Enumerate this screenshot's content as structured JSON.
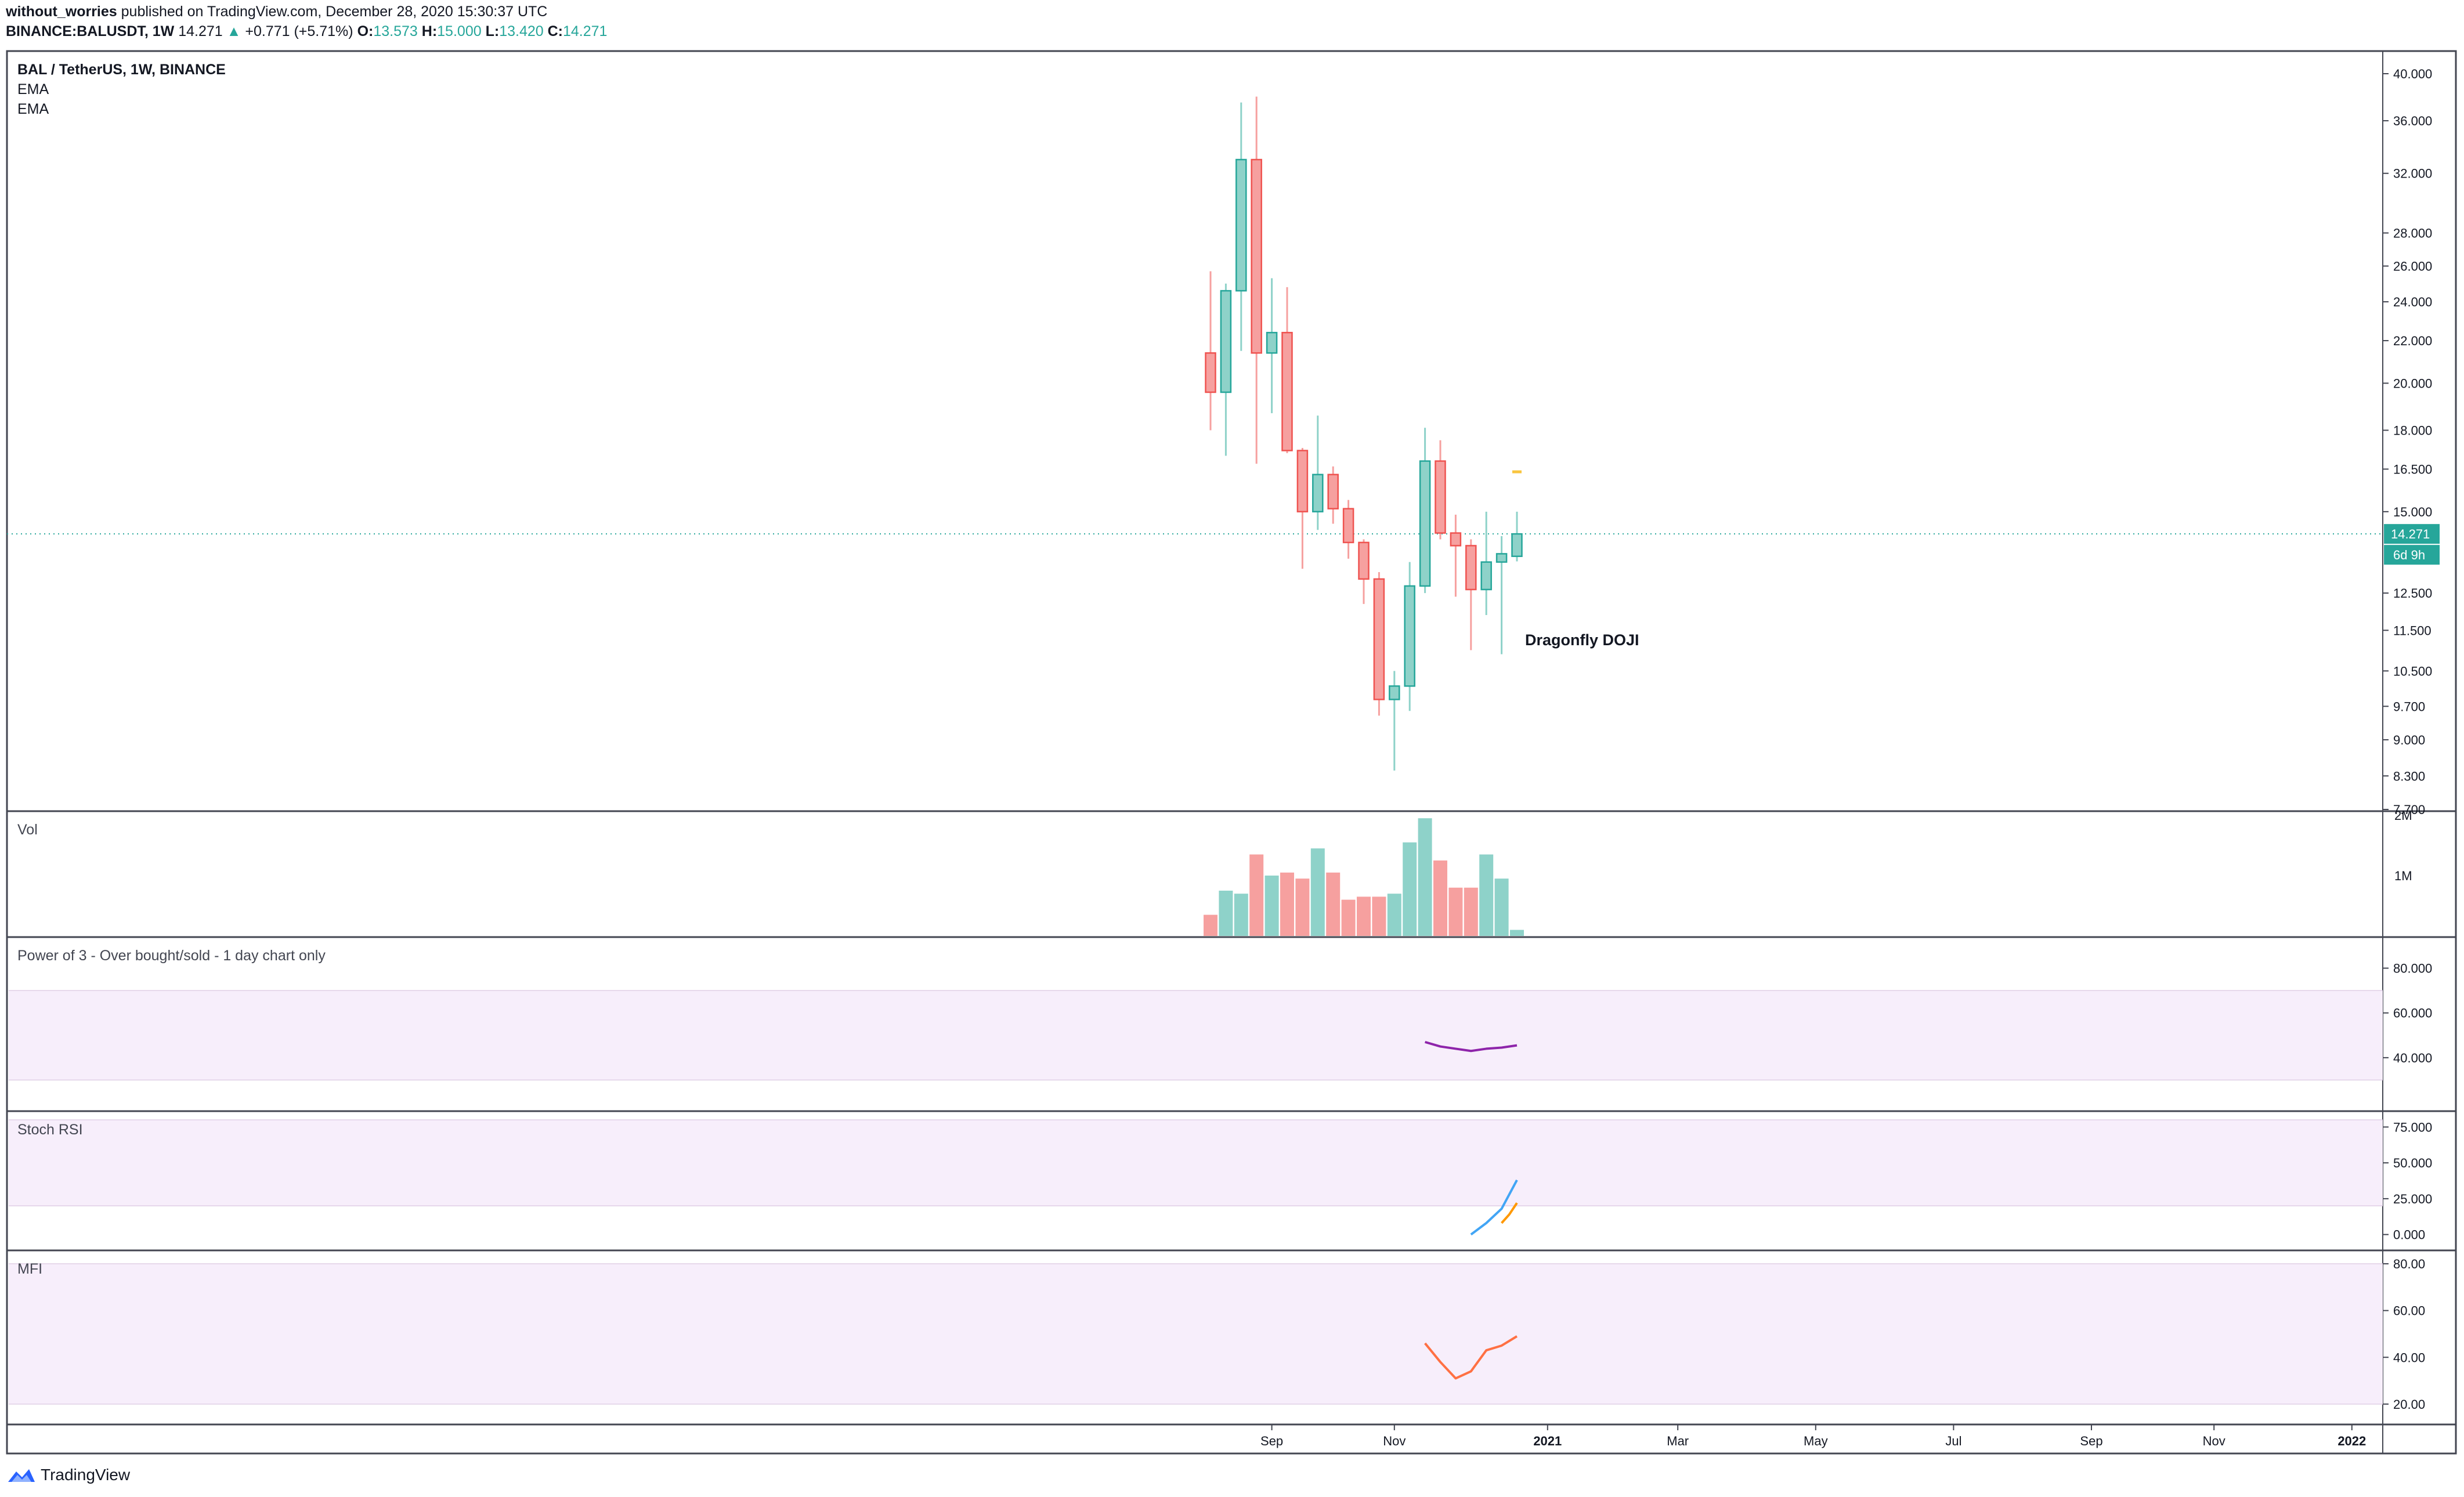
{
  "header": {
    "author": "without_worries",
    "published": "published on TradingView.com, December 28, 2020 15:30:37 UTC",
    "symbol": "BINANCE:BALUSDT, 1W",
    "last": "14.271",
    "change": "+0.771 (+5.71%)",
    "o_label": "O:",
    "o": "13.573",
    "h_label": "H:",
    "h": "15.000",
    "l_label": "L:",
    "l": "13.420",
    "c_label": "C:",
    "c": "14.271"
  },
  "footer": {
    "brand": "TradingView"
  },
  "colors": {
    "up": "#26a69a",
    "down": "#ef5350",
    "up_vol": "#8ed2c9",
    "down_vol": "#f6a09f",
    "band": "#f7eefb",
    "line_purple": "#8e24aa",
    "stoch_k": "#42a5f5",
    "stoch_d": "#ff9800",
    "mfi": "#ff7043",
    "ema_mark": "#f9c53f"
  },
  "chart_data": [
    {
      "type": "candlestick",
      "title": "BAL / TetherUS, 1W, BINANCE",
      "legend": [
        "EMA",
        "EMA"
      ],
      "scale": "log",
      "ylim": [
        7.7,
        41
      ],
      "y_ticks": [
        "40.000",
        "36.000",
        "32.000",
        "28.000",
        "26.000",
        "24.000",
        "22.000",
        "20.000",
        "18.000",
        "16.500",
        "15.000",
        "12.500",
        "11.500",
        "10.500",
        "9.700",
        "9.000",
        "8.300",
        "7.700"
      ],
      "last_price_label": "14.271",
      "countdown_label": "6d 9h",
      "ema_marker": 16.4,
      "annotation": {
        "text": "Dragonfly DOJI",
        "x": 20
      },
      "candles": [
        {
          "x": 0,
          "o": 21.4,
          "h": 25.7,
          "l": 18.0,
          "c": 19.6
        },
        {
          "x": 1,
          "o": 19.6,
          "h": 25.0,
          "l": 17.0,
          "c": 24.6
        },
        {
          "x": 2,
          "o": 24.6,
          "h": 37.5,
          "l": 21.5,
          "c": 33.0
        },
        {
          "x": 3,
          "o": 33.0,
          "h": 38.0,
          "l": 16.7,
          "c": 21.4
        },
        {
          "x": 4,
          "o": 21.4,
          "h": 25.3,
          "l": 18.7,
          "c": 22.4
        },
        {
          "x": 5,
          "o": 22.4,
          "h": 24.8,
          "l": 17.1,
          "c": 17.2
        },
        {
          "x": 6,
          "o": 17.2,
          "h": 17.3,
          "l": 13.2,
          "c": 15.0
        },
        {
          "x": 7,
          "o": 15.0,
          "h": 18.6,
          "l": 14.4,
          "c": 16.3
        },
        {
          "x": 8,
          "o": 16.3,
          "h": 16.6,
          "l": 14.6,
          "c": 15.1
        },
        {
          "x": 9,
          "o": 15.1,
          "h": 15.4,
          "l": 13.5,
          "c": 14.0
        },
        {
          "x": 10,
          "o": 14.0,
          "h": 14.1,
          "l": 12.2,
          "c": 12.9
        },
        {
          "x": 11,
          "o": 12.9,
          "h": 13.1,
          "l": 9.5,
          "c": 9.85
        },
        {
          "x": 12,
          "o": 9.85,
          "h": 10.5,
          "l": 8.4,
          "c": 10.15
        },
        {
          "x": 13,
          "o": 10.15,
          "h": 13.4,
          "l": 9.6,
          "c": 12.7
        },
        {
          "x": 14,
          "o": 12.7,
          "h": 18.1,
          "l": 12.5,
          "c": 16.8
        },
        {
          "x": 15,
          "o": 16.8,
          "h": 17.6,
          "l": 14.1,
          "c": 14.3
        },
        {
          "x": 16,
          "o": 14.3,
          "h": 14.9,
          "l": 12.4,
          "c": 13.9
        },
        {
          "x": 17,
          "o": 13.9,
          "h": 14.1,
          "l": 11.0,
          "c": 12.6
        },
        {
          "x": 18,
          "o": 12.6,
          "h": 15.0,
          "l": 11.9,
          "c": 13.4
        },
        {
          "x": 19,
          "o": 13.4,
          "h": 14.2,
          "l": 10.9,
          "c": 13.65
        },
        {
          "x": 20,
          "o": 13.573,
          "h": 15.0,
          "l": 13.42,
          "c": 14.271
        }
      ],
      "x_ticks": [
        {
          "label": "Sep",
          "x": 4
        },
        {
          "label": "Nov",
          "x": 12
        },
        {
          "label": "2021",
          "x": 22
        },
        {
          "label": "Mar",
          "x": 30.5
        },
        {
          "label": "May",
          "x": 39.5
        },
        {
          "label": "Jul",
          "x": 48.5
        },
        {
          "label": "Sep",
          "x": 57.5
        },
        {
          "label": "Nov",
          "x": 65.5
        },
        {
          "label": "2022",
          "x": 74.5
        }
      ]
    },
    {
      "type": "bar",
      "title": "Vol",
      "y_ticks": [
        "2M",
        "1M"
      ],
      "ylim": [
        0,
        2000000
      ],
      "values": [
        350000,
        750000,
        700000,
        1350000,
        1000000,
        1050000,
        950000,
        1450000,
        1050000,
        600000,
        650000,
        650000,
        700000,
        1550000,
        1950000,
        1250000,
        800000,
        800000,
        1350000,
        950000,
        100000
      ],
      "directions": [
        "down",
        "up",
        "up",
        "down",
        "up",
        "down",
        "down",
        "up",
        "down",
        "down",
        "down",
        "down",
        "up",
        "up",
        "up",
        "down",
        "down",
        "down",
        "up",
        "up",
        "up"
      ]
    },
    {
      "type": "line",
      "title": "Power of 3 - Over bought/sold - 1 day chart only",
      "ylim": [
        20,
        90
      ],
      "y_ticks": [
        "80.000",
        "60.000",
        "40.000"
      ],
      "band": [
        30,
        70
      ],
      "x": [
        14,
        15,
        16,
        17,
        18,
        19,
        20
      ],
      "values": [
        47,
        45,
        44,
        43,
        44,
        44.5,
        45.5
      ]
    },
    {
      "type": "line",
      "title": "Stoch RSI",
      "ylim": [
        -5,
        80
      ],
      "y_ticks": [
        "75.000",
        "50.000",
        "25.000",
        "0.000"
      ],
      "band": [
        20,
        80
      ],
      "series": [
        {
          "x": [
            17,
            18,
            19,
            20
          ],
          "values": [
            0,
            8,
            18,
            38
          ]
        },
        {
          "x": [
            19,
            19.5,
            20
          ],
          "values": [
            8,
            14,
            22
          ]
        }
      ]
    },
    {
      "type": "line",
      "title": "MFI",
      "ylim": [
        15,
        82
      ],
      "y_ticks": [
        "80.00",
        "60.00",
        "40.00",
        "20.00"
      ],
      "band": [
        20,
        80
      ],
      "x": [
        14,
        15,
        16,
        17,
        18,
        19,
        20
      ],
      "values": [
        46,
        38,
        31,
        34,
        43,
        45,
        49
      ]
    }
  ]
}
